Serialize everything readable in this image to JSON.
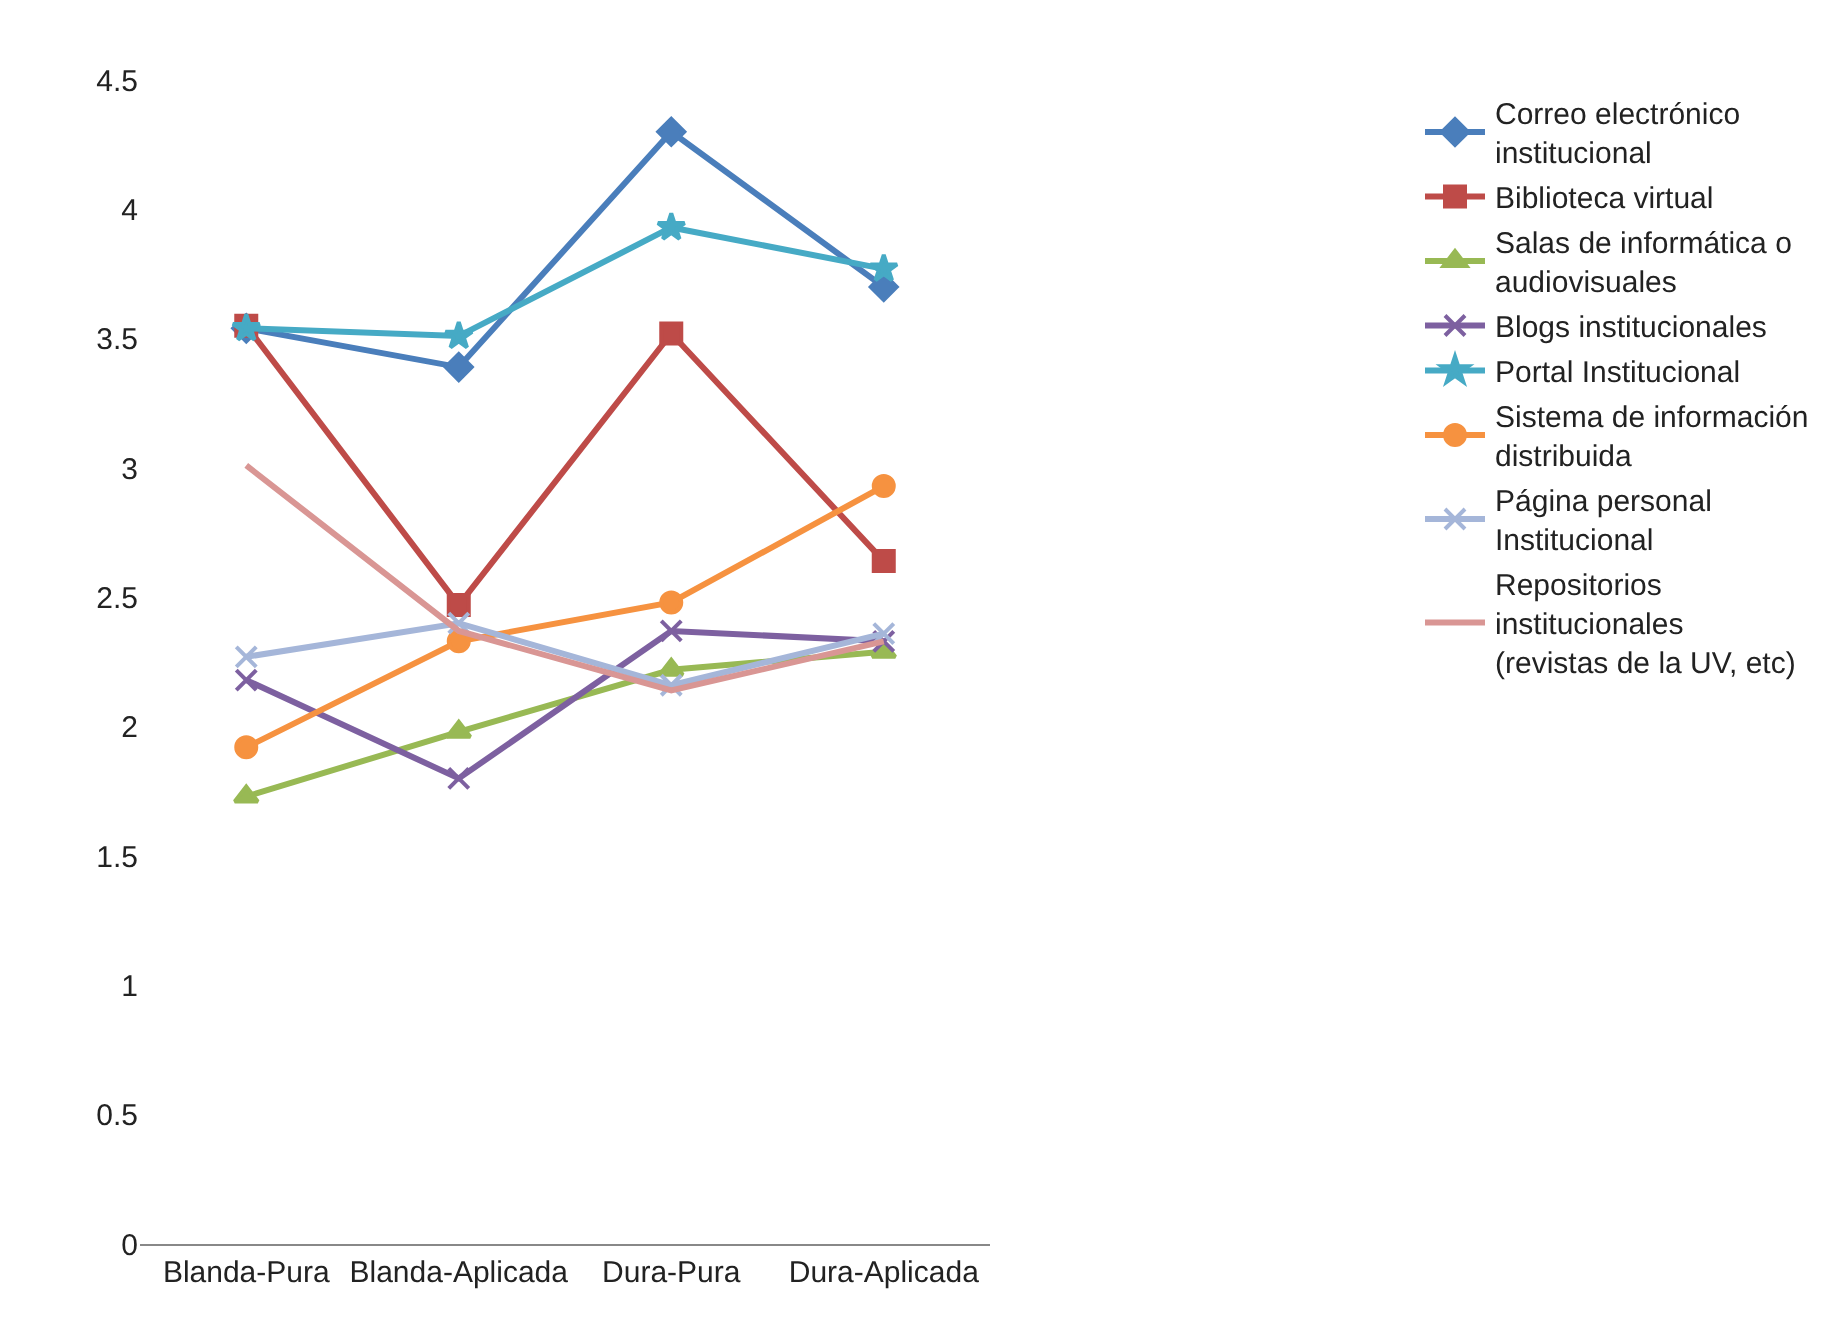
{
  "chart_data": {
    "type": "line",
    "categories": [
      "Blanda-Pura",
      "Blanda-Aplicada",
      "Dura-Pura",
      "Dura-Aplicada"
    ],
    "ylim": [
      0,
      4.5
    ],
    "yticks": [
      0,
      0.5,
      1,
      1.5,
      2,
      2.5,
      3,
      3.5,
      4,
      4.5
    ],
    "legend": "right",
    "series": [
      {
        "name": "Correo electrónico institucional",
        "color": "#4a7ebb",
        "marker": "diamond",
        "values": [
          3.54,
          3.39,
          4.3,
          3.7
        ]
      },
      {
        "name": "Biblioteca virtual",
        "color": "#be4b48",
        "marker": "square",
        "values": [
          3.55,
          2.47,
          3.52,
          2.64
        ]
      },
      {
        "name": "Salas de informática o audiovisuales",
        "color": "#98b954",
        "marker": "triangle",
        "values": [
          1.73,
          1.98,
          2.22,
          2.29
        ]
      },
      {
        "name": "Blogs institucionales",
        "color": "#7d60a0",
        "marker": "cross",
        "values": [
          2.18,
          1.8,
          2.37,
          2.33
        ]
      },
      {
        "name": "Portal Institucional",
        "color": "#46aac5",
        "marker": "star",
        "values": [
          3.54,
          3.51,
          3.93,
          3.77
        ]
      },
      {
        "name": "Sistema de información distribuida",
        "color": "#f69240",
        "marker": "circle",
        "values": [
          1.92,
          2.33,
          2.48,
          2.93
        ]
      },
      {
        "name": "Página personal Institucional",
        "color": "#a5b6d9",
        "marker": "cross",
        "values": [
          2.27,
          2.4,
          2.16,
          2.36
        ]
      },
      {
        "name": "Repositorios institucionales (revistas de la UV, etc)",
        "color": "#d99694",
        "marker": "none",
        "values": [
          3.01,
          2.37,
          2.14,
          2.33
        ]
      }
    ]
  }
}
